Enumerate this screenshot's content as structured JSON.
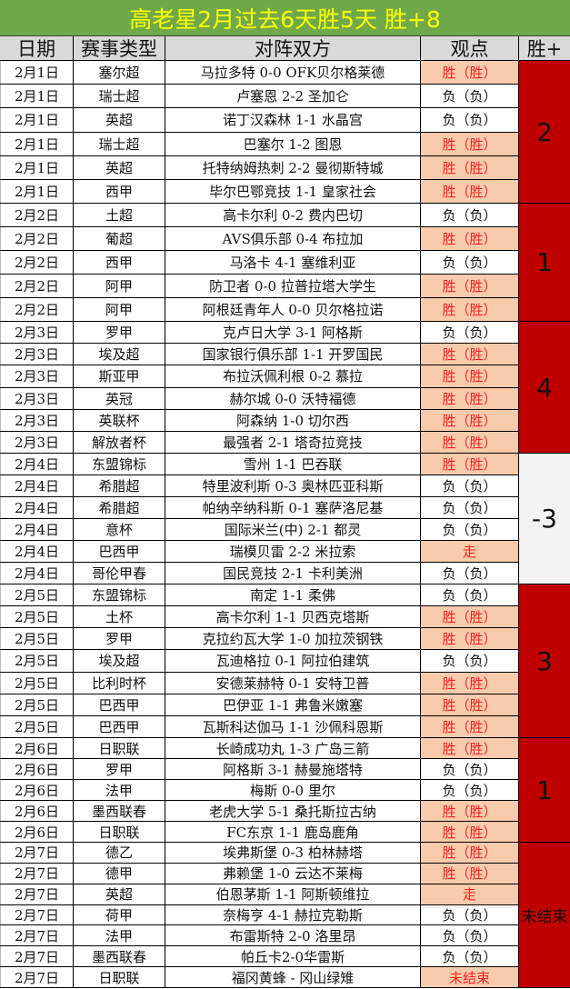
{
  "title": "高老星2月过去6天胜5天  胜+8",
  "headers": [
    "日期",
    "赛事类型",
    "对阵双方",
    "观点",
    "胜+"
  ],
  "colors": {
    "title_bg": "#6fa94a",
    "title_text": "#ffff00",
    "win_bg": "#f8cbad",
    "win_text": "#ff2020",
    "summary_red": "#c00000",
    "summary_grey": "#f2f2f2"
  },
  "groups": [
    {
      "summary": "2",
      "style": "red",
      "rows": [
        [
          "2月1日",
          "塞尔超",
          "马拉多特 0-0 OFK贝尔格莱德",
          "胜（胜）"
        ],
        [
          "2月1日",
          "瑞士超",
          "卢塞恩 2-2 圣加仑",
          "负（负）"
        ],
        [
          "2月1日",
          "英超",
          "诺丁汉森林 1-1 水晶宫",
          "负（负）"
        ],
        [
          "2月1日",
          "瑞士超",
          "巴塞尔 1-2 图恩",
          "胜（胜）"
        ],
        [
          "2月1日",
          "英超",
          "托特纳姆热刺 2-2 曼彻斯特城",
          "胜（胜）"
        ],
        [
          "2月1日",
          "西甲",
          "毕尔巴鄂竞技 1-1 皇家社会",
          "胜（胜）"
        ]
      ]
    },
    {
      "summary": "1",
      "style": "red",
      "rows": [
        [
          "2月2日",
          "土超",
          "高卡尔利 0-2 费内巴切",
          "负（负）"
        ],
        [
          "2月2日",
          "葡超",
          "AVS俱乐部 0-4 布拉加",
          "胜（胜）"
        ],
        [
          "2月2日",
          "西甲",
          "马洛卡 4-1 塞维利亚",
          "负（负）"
        ],
        [
          "2月2日",
          "阿甲",
          "防卫者 0-0 拉普拉塔大学生",
          "胜（胜）"
        ],
        [
          "2月2日",
          "阿甲",
          "阿根廷青年人 0-0 贝尔格拉诺",
          "胜（胜）"
        ]
      ]
    },
    {
      "summary": "4",
      "style": "red",
      "rows": [
        [
          "2月3日",
          "罗甲",
          "克卢日大学 3-1 阿格斯",
          "负（负）"
        ],
        [
          "2月3日",
          "埃及超",
          "国家银行俱乐部 1-1 开罗国民",
          "胜（胜）"
        ],
        [
          "2月3日",
          "斯亚甲",
          "布拉沃佩利根 0-2 慕拉",
          "胜（胜）"
        ],
        [
          "2月3日",
          "英冠",
          "赫尔城 0-0 沃特福德",
          "胜（胜）"
        ],
        [
          "2月3日",
          "英联杯",
          "阿森纳 1-0 切尔西",
          "胜（胜）"
        ],
        [
          "2月3日",
          "解放者杯",
          "最强者 2-1 塔奇拉竞技",
          "胜（胜）"
        ]
      ]
    },
    {
      "summary": "-3",
      "style": "grey",
      "rows": [
        [
          "2月4日",
          "东盟锦标",
          "雪州 1-1 巴吞联",
          "胜（胜）"
        ],
        [
          "2月4日",
          "希腊超",
          "特里波利斯 0-3 奥林匹亚科斯",
          "负（负）"
        ],
        [
          "2月4日",
          "希腊超",
          "帕纳辛纳科斯 0-1 塞萨洛尼基",
          "负（负）"
        ],
        [
          "2月4日",
          "意杯",
          "国际米兰(中) 2-1 都灵",
          "负（负）"
        ],
        [
          "2月4日",
          "巴西甲",
          "瑞模贝雷 2-2 米拉索",
          "走"
        ],
        [
          "2月4日",
          "哥伦甲春",
          "国民竞技 2-1 卡利美洲",
          "负（负）"
        ]
      ]
    },
    {
      "summary": "3",
      "style": "red",
      "rows": [
        [
          "2月5日",
          "东盟锦标",
          "南定 1-1 柔佛",
          "负（负）"
        ],
        [
          "2月5日",
          "土杯",
          "高卡尔利 1-1 贝西克塔斯",
          "胜（胜）"
        ],
        [
          "2月5日",
          "罗甲",
          "克拉约瓦大学 1-0 加拉茨钢铁",
          "胜（胜）"
        ],
        [
          "2月5日",
          "埃及超",
          "瓦迪格拉 0-1 阿拉伯建筑",
          "负（负）"
        ],
        [
          "2月5日",
          "比利时杯",
          "安德莱赫特 0-1 安特卫普",
          "胜（胜）"
        ],
        [
          "2月5日",
          "巴西甲",
          "巴伊亚 1-1 弗鲁米嫩塞",
          "胜（胜）"
        ],
        [
          "2月5日",
          "巴西甲",
          "瓦斯科达伽马 1-1 沙佩科恩斯",
          "胜（胜）"
        ]
      ]
    },
    {
      "summary": "1",
      "style": "red",
      "rows": [
        [
          "2月6日",
          "日职联",
          "长崎成功丸 1-3 广岛三箭",
          "胜（胜）"
        ],
        [
          "2月6日",
          "罗甲",
          "阿格斯 3-1 赫曼施塔特",
          "负（负）"
        ],
        [
          "2月6日",
          "法甲",
          "梅斯 0-0 里尔",
          "负（负）"
        ],
        [
          "2月6日",
          "墨西联春",
          "老虎大学 5-1 桑托斯拉古纳",
          "胜（胜）"
        ],
        [
          "2月6日",
          "日职联",
          "FC东京 1-1 鹿岛鹿角",
          "胜（胜）"
        ]
      ]
    },
    {
      "summary": "未结束",
      "style": "red small",
      "rows": [
        [
          "2月7日",
          "德乙",
          "埃弗斯堡 0-3 柏林赫塔",
          "胜（胜）"
        ],
        [
          "2月7日",
          "德甲",
          "弗赖堡 1-0 云达不莱梅",
          "胜（胜）"
        ],
        [
          "2月7日",
          "英超",
          "伯恩茅斯 1-1 阿斯顿维拉",
          "走"
        ],
        [
          "2月7日",
          "荷甲",
          "奈梅亨 4-1 赫拉克勒斯",
          "负（负）"
        ],
        [
          "2月7日",
          "法甲",
          "布雷斯特 2-0 洛里昂",
          "负（负）"
        ],
        [
          "2月7日",
          "墨西联春",
          "帕丘卡2-0华雷斯",
          "负（负）"
        ],
        [
          "2月7日",
          "日职联",
          "福冈黄蜂 - 冈山绿雉",
          "未结束"
        ]
      ]
    }
  ]
}
